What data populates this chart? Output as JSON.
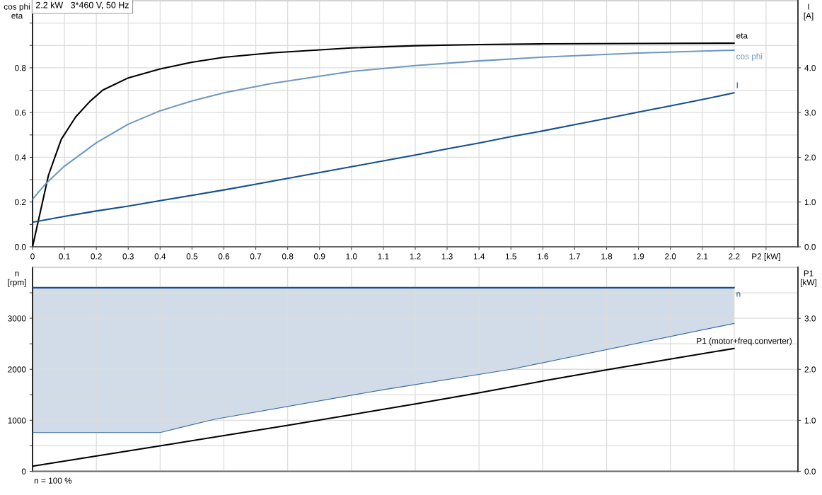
{
  "chart_data": [
    {
      "type": "line",
      "title": "2.2 kW   3*460 V, 50 Hz",
      "ylabel": "cos phi\neta",
      "y2label": "I\n[A]",
      "xlim": [
        0,
        2.4
      ],
      "xticks": [
        0,
        0.1,
        0.2,
        0.3,
        0.4,
        0.5,
        0.6,
        0.7,
        0.8,
        0.9,
        {
          "value": 1,
          "label": "1.0"
        },
        1.1,
        1.2,
        1.3,
        1.4,
        1.5,
        1.6,
        1.7,
        1.8,
        1.9,
        {
          "value": 2,
          "label": "2.0"
        },
        2.1,
        2.2,
        {
          "value": 2.3,
          "label": "P2 [kW]"
        }
      ],
      "ylim": [
        0,
        1.1
      ],
      "yticks": [
        {
          "value": 0,
          "label": "0.0"
        },
        {
          "value": 0.1,
          "label": null
        },
        0.2,
        {
          "value": 0.3,
          "label": null
        },
        0.4,
        {
          "value": 0.5,
          "label": null
        },
        0.6,
        {
          "value": 0.7,
          "label": null
        },
        0.8,
        {
          "value": 0.9,
          "label": null
        },
        {
          "value": 1,
          "label": null
        }
      ],
      "y2lim": [
        0,
        5.5
      ],
      "y2ticks": [
        {
          "value": 0,
          "label": "0.0"
        },
        {
          "value": 1,
          "label": "1.0"
        },
        {
          "value": 2,
          "label": "2.0"
        },
        {
          "value": 3,
          "label": "3.0"
        },
        {
          "value": 4,
          "label": "4.0"
        }
      ],
      "grid": true,
      "series": [
        {
          "name": "eta",
          "color": "#000000",
          "x": [
            0,
            0.05,
            0.09,
            0.135,
            0.18,
            0.22,
            0.3,
            0.4,
            0.5,
            0.6,
            0.75,
            1.0,
            1.2,
            1.4,
            1.6,
            1.9,
            2.2
          ],
          "values": [
            0,
            0.32,
            0.48,
            0.58,
            0.65,
            0.7,
            0.755,
            0.795,
            0.825,
            0.847,
            0.867,
            0.889,
            0.899,
            0.904,
            0.907,
            0.909,
            0.91
          ]
        },
        {
          "name": "cos phi",
          "color": "#6e98c0",
          "x": [
            0,
            0.04,
            0.1,
            0.2,
            0.3,
            0.4,
            0.5,
            0.6,
            0.75,
            1.0,
            1.2,
            1.4,
            1.6,
            1.9,
            2.2
          ],
          "values": [
            0.212,
            0.28,
            0.36,
            0.465,
            0.548,
            0.608,
            0.652,
            0.688,
            0.73,
            0.784,
            0.81,
            0.831,
            0.848,
            0.866,
            0.879
          ]
        },
        {
          "name": "I",
          "color": "#15508e",
          "axis": "y2",
          "x": [
            0,
            0.1,
            0.2,
            0.3,
            0.4,
            0.5,
            0.6,
            0.7,
            0.8,
            0.9,
            1.0,
            1.1,
            1.2,
            1.3,
            1.4,
            1.5,
            1.6,
            1.7,
            1.8,
            1.9,
            2.0,
            2.1,
            2.2
          ],
          "values": [
            0.55,
            0.68,
            0.8,
            0.91,
            1.03,
            1.15,
            1.27,
            1.4,
            1.53,
            1.66,
            1.79,
            1.92,
            2.05,
            2.19,
            2.32,
            2.46,
            2.59,
            2.73,
            2.87,
            3.01,
            3.15,
            3.29,
            3.44
          ]
        }
      ]
    },
    {
      "type": "line",
      "ylabel": "n\n[rpm]",
      "y2label": "P1\n[kW]",
      "annotations": [
        "n = 100 %"
      ],
      "xlim": [
        0,
        2.4
      ],
      "xticks": [
        0,
        0.2,
        0.4,
        0.6,
        0.8,
        1.0,
        1.2,
        1.4,
        1.6,
        1.8,
        2.0,
        2.2
      ],
      "ylim": [
        0,
        4000
      ],
      "yticks": [
        0,
        {
          "value": 500,
          "label": null
        },
        1000,
        {
          "value": 1500,
          "label": null
        },
        2000,
        {
          "value": 2500,
          "label": null
        },
        3000,
        {
          "value": 3500,
          "label": null
        }
      ],
      "y2lim": [
        0,
        4
      ],
      "y2ticks": [
        {
          "value": 0,
          "label": "0.0"
        },
        {
          "value": 1,
          "label": "1.0"
        },
        {
          "value": 2,
          "label": "2.0"
        },
        {
          "value": 3,
          "label": "3.0"
        }
      ],
      "grid": true,
      "tick_labels": "y",
      "series": [
        {
          "name": "n",
          "color": "#1b4f8a",
          "x": [
            0,
            0.4,
            0.57,
            1.1,
            1.5,
            2.2
          ],
          "values": [
            3600,
            3600,
            3600,
            3600,
            3600,
            3600
          ],
          "lower": [
            760,
            760,
            1020,
            1600,
            2000,
            2900
          ],
          "upper": [
            3600,
            3600,
            3600,
            3600,
            3600,
            3600
          ]
        },
        {
          "color": "#3a6aa5",
          "x": [
            0,
            0.4,
            0.57,
            1.1,
            1.5,
            2.2
          ],
          "values": [
            760,
            760,
            1020,
            1600,
            2000,
            2900
          ]
        },
        {
          "name": "P1 (motor+freq.converter)",
          "color": "#000000",
          "axis": "y2",
          "x": [
            0,
            0.4,
            0.8,
            1.2,
            1.4,
            1.6,
            1.8,
            2.0,
            2.2
          ],
          "values": [
            0.1,
            0.5,
            0.9,
            1.32,
            1.54,
            1.77,
            1.99,
            2.2,
            2.41
          ]
        }
      ]
    }
  ]
}
